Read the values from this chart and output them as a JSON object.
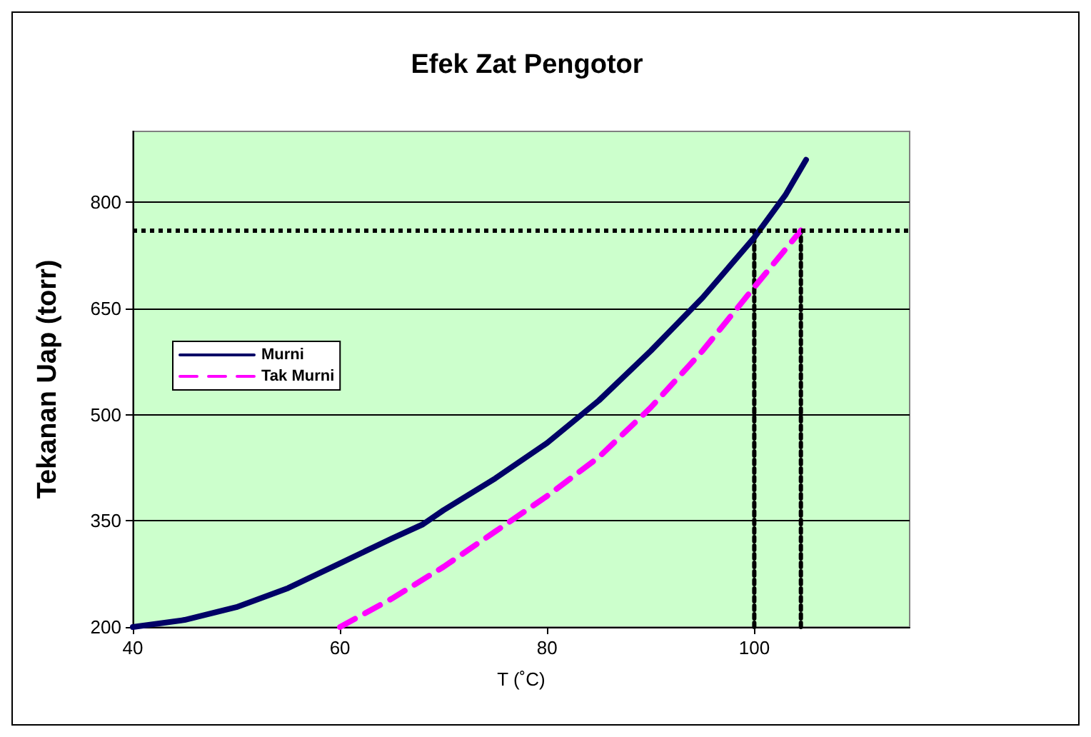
{
  "chart_data": {
    "type": "line",
    "title": "Efek Zat Pengotor",
    "xlabel": "T (˚C)",
    "ylabel": "Tekanan Uap (torr)",
    "xlim": [
      40,
      115
    ],
    "xticks": [
      40,
      60,
      80,
      100
    ],
    "ylim": [
      200,
      900
    ],
    "yticks": [
      200,
      350,
      500,
      650,
      800
    ],
    "grid": "y",
    "legend": "left",
    "marker": "none",
    "series": [
      {
        "name": "Murni",
        "color": "#000066",
        "x": [
          40,
          45,
          50,
          55,
          60,
          65,
          68,
          70,
          75,
          80,
          85,
          90,
          95,
          100,
          103,
          105
        ],
        "values": [
          200,
          210,
          228,
          255,
          290,
          325,
          345,
          365,
          410,
          460,
          520,
          590,
          665,
          750,
          810,
          860
        ]
      },
      {
        "name": "Tak Murni",
        "color": "#ff00ff",
        "line_style": "dashed",
        "x": [
          60,
          65,
          70,
          75,
          80,
          85,
          90,
          95,
          100,
          104.5
        ],
        "values": [
          200,
          240,
          285,
          335,
          385,
          440,
          510,
          590,
          680,
          760
        ]
      },
      {
        "color": "#000000",
        "line_style": "dotted",
        "x": [
          100,
          100
        ],
        "values": [
          200,
          760
        ]
      },
      {
        "color": "#000000",
        "line_style": "dotted",
        "x": [
          104.5,
          104.5
        ],
        "values": [
          200,
          760
        ]
      }
    ],
    "ref_lines": [
      {
        "axis": "y",
        "value": 760,
        "color": "#000000",
        "line_style": "dotted"
      }
    ]
  }
}
